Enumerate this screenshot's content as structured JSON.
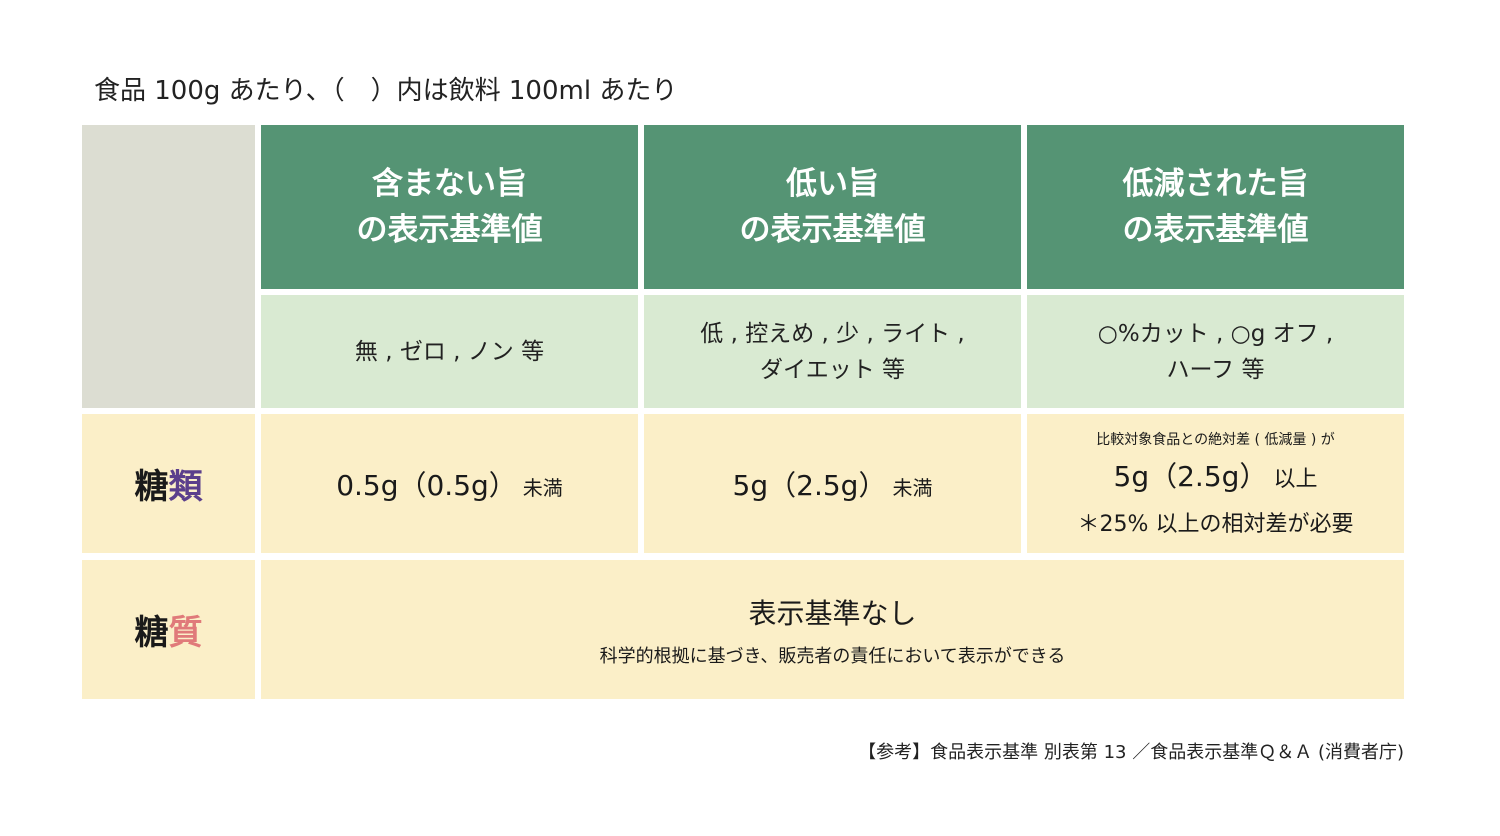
{
  "caption": "食品 100g あたり、（　）内は飲料 100ml あたり",
  "columns": [
    {
      "heading_line1": "含まない旨",
      "heading_line2": "の表示基準値",
      "examples_line1": "無 , ゼロ , ノン 等",
      "examples_line2": ""
    },
    {
      "heading_line1": "低い旨",
      "heading_line2": "の表示基準値",
      "examples_line1": "低 , 控えめ , 少 , ライト ,",
      "examples_line2": "ダイエット 等"
    },
    {
      "heading_line1": "低減された旨",
      "heading_line2": "の表示基準値",
      "examples_line1": "○%カット , ○g オフ ,",
      "examples_line2": "ハーフ 等"
    }
  ],
  "rows": {
    "sugars": {
      "label_part1": "糖",
      "label_part2": "類",
      "label_part2_color": "#5b3f8c",
      "none_value": "0.5g（0.5g）",
      "none_suffix": "未満",
      "low_value": "5g（2.5g）",
      "low_suffix": "未満",
      "reduced_note": "比較対象食品との絶対差 ( 低減量 ) が",
      "reduced_value": "5g（2.5g）",
      "reduced_suffix": "以上",
      "reduced_requirement": "＊25% 以上の相対差が必要"
    },
    "carbs": {
      "label_part1": "糖",
      "label_part2": "質",
      "label_part2_color": "#e07a7a",
      "title": "表示基準なし",
      "description": "科学的根拠に基づき、販売者の責任において表示ができる"
    }
  },
  "source": "【参考】食品表示基準 別表第 13 ／食品表示基準Ｑ＆Ａ (消費者庁)",
  "colors": {
    "header_green": "#559474",
    "sub_green": "#d9ead2",
    "cream": "#fbefc8",
    "corner_gray": "#dcddd2"
  }
}
